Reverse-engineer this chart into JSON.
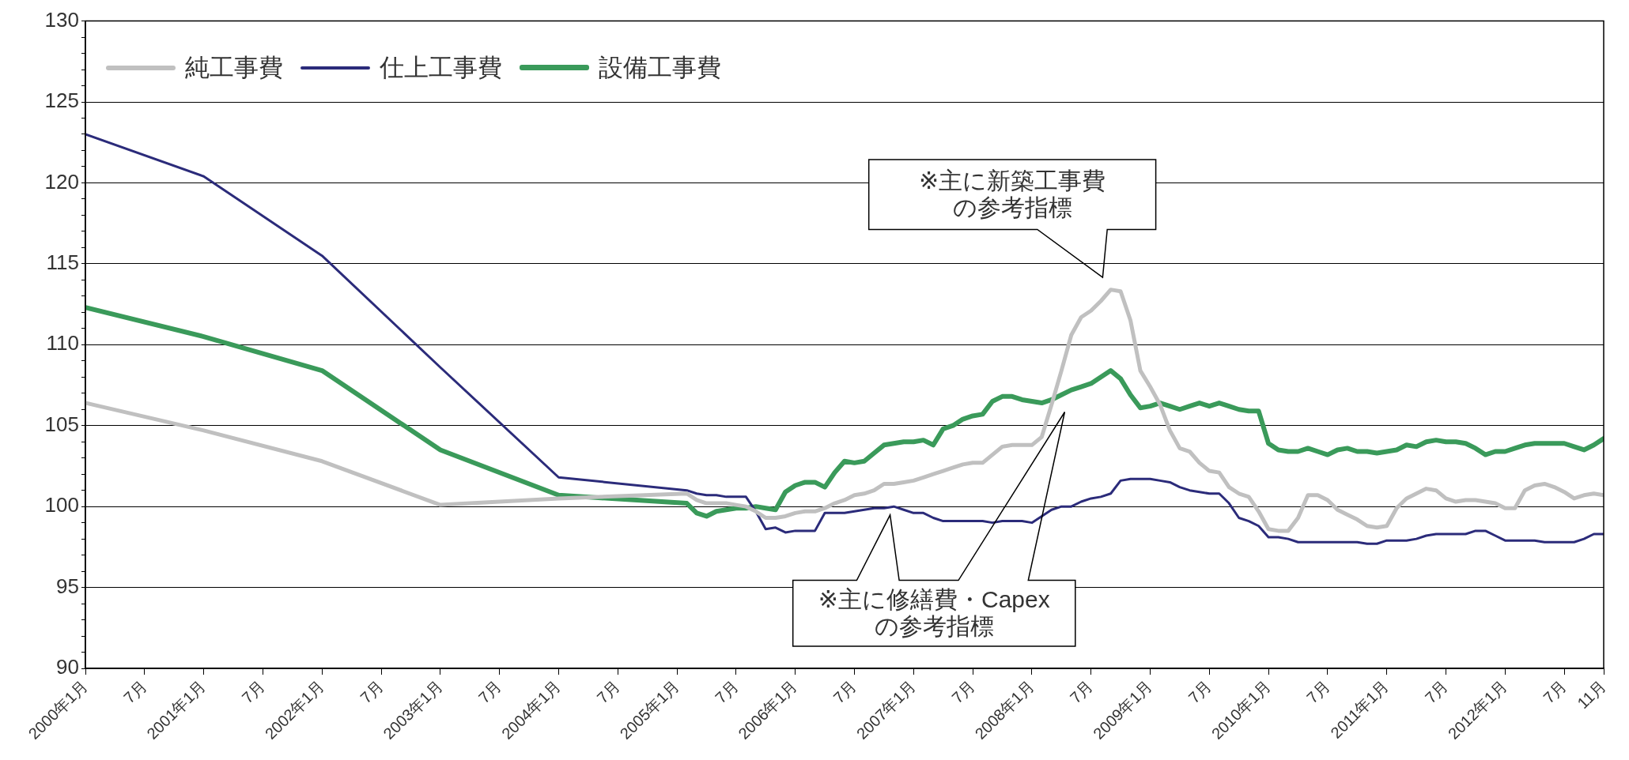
{
  "chart_data": {
    "type": "line",
    "legend": "top left",
    "grid": "y",
    "line_style": "solid",
    "marker": "none",
    "annotations": [
      "※主に新築工事費の参考指標",
      "※主に修繕費・Capexの参考指標"
    ],
    "x": [
      "2000-01",
      "2001-01",
      "2002-01",
      "2003-01",
      "2004-01",
      "2005-02",
      "2005-03",
      "2005-04",
      "2005-05",
      "2005-06",
      "2005-07",
      "2005-08",
      "2005-09",
      "2005-10",
      "2005-11",
      "2005-12",
      "2006-01",
      "2006-02",
      "2006-03",
      "2006-04",
      "2006-05",
      "2006-06",
      "2006-07",
      "2006-08",
      "2006-09",
      "2006-10",
      "2006-11",
      "2006-12",
      "2007-01",
      "2007-02",
      "2007-03",
      "2007-04",
      "2007-05",
      "2007-06",
      "2007-07",
      "2007-08",
      "2007-09",
      "2007-10",
      "2007-11",
      "2007-12",
      "2008-01",
      "2008-02",
      "2008-03",
      "2008-04",
      "2008-05",
      "2008-06",
      "2008-07",
      "2008-08",
      "2008-09",
      "2008-10",
      "2008-11",
      "2008-12",
      "2009-01",
      "2009-02",
      "2009-03",
      "2009-04",
      "2009-05",
      "2009-06",
      "2009-07",
      "2009-08",
      "2009-09",
      "2009-10",
      "2009-11",
      "2009-12",
      "2010-01",
      "2010-02",
      "2010-03",
      "2010-04",
      "2010-05",
      "2010-06",
      "2010-07",
      "2010-08",
      "2010-09",
      "2010-10",
      "2010-11",
      "2010-12",
      "2011-01",
      "2011-02",
      "2011-03",
      "2011-04",
      "2011-05",
      "2011-06",
      "2011-07",
      "2011-08",
      "2011-09",
      "2011-10",
      "2011-11",
      "2011-12",
      "2012-01",
      "2012-02",
      "2012-03",
      "2012-04",
      "2012-05",
      "2012-06",
      "2012-07",
      "2012-08",
      "2012-09",
      "2012-10",
      "2012-11"
    ],
    "series": [
      {
        "name": "純工事費",
        "color": "#c0c0c0",
        "values": [
          106.4,
          104.7,
          102.8,
          100.1,
          100.5,
          100.8,
          100.4,
          100.2,
          100.2,
          100.2,
          100.1,
          100.0,
          99.7,
          99.3,
          99.3,
          99.4,
          99.6,
          99.7,
          99.7,
          99.9,
          100.2,
          100.4,
          100.7,
          100.8,
          101.0,
          101.4,
          101.4,
          101.5,
          101.6,
          101.8,
          102.0,
          102.2,
          102.4,
          102.6,
          102.7,
          102.7,
          103.2,
          103.7,
          103.8,
          103.8,
          103.8,
          104.3,
          106.3,
          108.4,
          110.6,
          111.7,
          112.1,
          112.7,
          113.4,
          113.3,
          111.5,
          108.4,
          107.4,
          106.3,
          104.7,
          103.6,
          103.4,
          102.7,
          102.2,
          102.1,
          101.2,
          100.8,
          100.6,
          99.7,
          98.6,
          98.5,
          98.5,
          99.3,
          100.7,
          100.7,
          100.4,
          99.8,
          99.5,
          99.2,
          98.8,
          98.7,
          98.8,
          99.9,
          100.5,
          100.8,
          101.1,
          101.0,
          100.5,
          100.3,
          100.4,
          100.4,
          100.3,
          100.2,
          99.9,
          99.9,
          101.0,
          101.3,
          101.4,
          101.2,
          100.9,
          100.5,
          100.7,
          100.8,
          100.7
        ]
      },
      {
        "name": "仕上工事費",
        "color": "#2b2b7a",
        "values": [
          123.0,
          120.4,
          115.5,
          108.6,
          101.8,
          101.0,
          100.8,
          100.7,
          100.7,
          100.6,
          100.6,
          100.6,
          99.7,
          98.6,
          98.7,
          98.4,
          98.5,
          98.5,
          98.5,
          99.6,
          99.6,
          99.6,
          99.7,
          99.8,
          99.9,
          99.9,
          100.0,
          99.8,
          99.6,
          99.6,
          99.3,
          99.1,
          99.1,
          99.1,
          99.1,
          99.1,
          99.0,
          99.1,
          99.1,
          99.1,
          99.0,
          99.4,
          99.8,
          100.0,
          100.0,
          100.3,
          100.5,
          100.6,
          100.8,
          101.6,
          101.7,
          101.7,
          101.7,
          101.6,
          101.5,
          101.2,
          101.0,
          100.9,
          100.8,
          100.8,
          100.2,
          99.3,
          99.1,
          98.8,
          98.1,
          98.1,
          98.0,
          97.8,
          97.8,
          97.8,
          97.8,
          97.8,
          97.8,
          97.8,
          97.7,
          97.7,
          97.9,
          97.9,
          97.9,
          98.0,
          98.2,
          98.3,
          98.3,
          98.3,
          98.3,
          98.5,
          98.5,
          98.2,
          97.9,
          97.9,
          97.9,
          97.9,
          97.8,
          97.8,
          97.8,
          97.8,
          98.0,
          98.3,
          98.3
        ]
      },
      {
        "name": "設備工事費",
        "color": "#3a9a5a",
        "values": [
          112.3,
          110.5,
          108.4,
          103.5,
          100.7,
          100.2,
          99.6,
          99.4,
          99.7,
          99.8,
          99.9,
          99.9,
          100.0,
          99.9,
          99.8,
          100.9,
          101.3,
          101.5,
          101.5,
          101.2,
          102.1,
          102.8,
          102.7,
          102.8,
          103.3,
          103.8,
          103.9,
          104.0,
          104.0,
          104.1,
          103.8,
          104.8,
          105.0,
          105.4,
          105.6,
          105.7,
          106.5,
          106.8,
          106.8,
          106.6,
          106.5,
          106.4,
          106.6,
          106.9,
          107.2,
          107.4,
          107.6,
          108.0,
          108.4,
          107.9,
          106.9,
          106.1,
          106.2,
          106.4,
          106.2,
          106.0,
          106.2,
          106.4,
          106.2,
          106.4,
          106.2,
          106.0,
          105.9,
          105.9,
          103.9,
          103.5,
          103.4,
          103.4,
          103.6,
          103.4,
          103.2,
          103.5,
          103.6,
          103.4,
          103.4,
          103.3,
          103.4,
          103.5,
          103.8,
          103.7,
          104.0,
          104.1,
          104.0,
          104.0,
          103.9,
          103.6,
          103.2,
          103.4,
          103.4,
          103.6,
          103.8,
          103.9,
          103.9,
          103.9,
          103.9,
          103.7,
          103.5,
          103.8,
          104.2
        ]
      }
    ],
    "xlim": [
      "2000-01",
      "2012-11"
    ],
    "xticks": [
      {
        "value": "2000-01",
        "label": "2000年1月"
      },
      {
        "value": "2000-07",
        "label": "7月"
      },
      {
        "value": "2001-01",
        "label": "2001年1月"
      },
      {
        "value": "2001-07",
        "label": "7月"
      },
      {
        "value": "2002-01",
        "label": "2002年1月"
      },
      {
        "value": "2002-07",
        "label": "7月"
      },
      {
        "value": "2003-01",
        "label": "2003年1月"
      },
      {
        "value": "2003-07",
        "label": "7月"
      },
      {
        "value": "2004-01",
        "label": "2004年1月"
      },
      {
        "value": "2004-07",
        "label": "7月"
      },
      {
        "value": "2005-01",
        "label": "2005年1月"
      },
      {
        "value": "2005-07",
        "label": "7月"
      },
      {
        "value": "2006-01",
        "label": "2006年1月"
      },
      {
        "value": "2006-07",
        "label": "7月"
      },
      {
        "value": "2007-01",
        "label": "2007年1月"
      },
      {
        "value": "2007-07",
        "label": "7月"
      },
      {
        "value": "2008-01",
        "label": "2008年1月"
      },
      {
        "value": "2008-07",
        "label": "7月"
      },
      {
        "value": "2009-01",
        "label": "2009年1月"
      },
      {
        "value": "2009-07",
        "label": "7月"
      },
      {
        "value": "2010-01",
        "label": "2010年1月"
      },
      {
        "value": "2010-07",
        "label": "7月"
      },
      {
        "value": "2011-01",
        "label": "2011年1月"
      },
      {
        "value": "2011-07",
        "label": "7月"
      },
      {
        "value": "2012-01",
        "label": "2012年1月"
      },
      {
        "value": "2012-07",
        "label": "7月"
      },
      {
        "value": "2012-11",
        "label": "11月"
      }
    ],
    "ylim": [
      90,
      130
    ],
    "yticks": [
      90,
      {
        "value": 91,
        "label": null
      },
      {
        "value": 92,
        "label": null
      },
      {
        "value": 93,
        "label": null
      },
      {
        "value": 94,
        "label": null
      },
      95,
      {
        "value": 96,
        "label": null
      },
      {
        "value": 97,
        "label": null
      },
      {
        "value": 98,
        "label": null
      },
      {
        "value": 99,
        "label": null
      },
      100,
      {
        "value": 101,
        "label": null
      },
      {
        "value": 102,
        "label": null
      },
      {
        "value": 103,
        "label": null
      },
      {
        "value": 104,
        "label": null
      },
      105,
      {
        "value": 106,
        "label": null
      },
      {
        "value": 107,
        "label": null
      },
      {
        "value": 108,
        "label": null
      },
      {
        "value": 109,
        "label": null
      },
      110,
      {
        "value": 111,
        "label": null
      },
      {
        "value": 112,
        "label": null
      },
      {
        "value": 113,
        "label": null
      },
      {
        "value": 114,
        "label": null
      },
      115,
      {
        "value": 116,
        "label": null
      },
      {
        "value": 117,
        "label": null
      },
      {
        "value": 118,
        "label": null
      },
      {
        "value": 119,
        "label": null
      },
      120,
      {
        "value": 121,
        "label": null
      },
      {
        "value": 122,
        "label": null
      },
      {
        "value": 123,
        "label": null
      },
      {
        "value": 124,
        "label": null
      },
      125,
      {
        "value": 126,
        "label": null
      },
      {
        "value": 127,
        "label": null
      },
      {
        "value": 128,
        "label": null
      },
      {
        "value": 129,
        "label": null
      },
      130
    ]
  }
}
